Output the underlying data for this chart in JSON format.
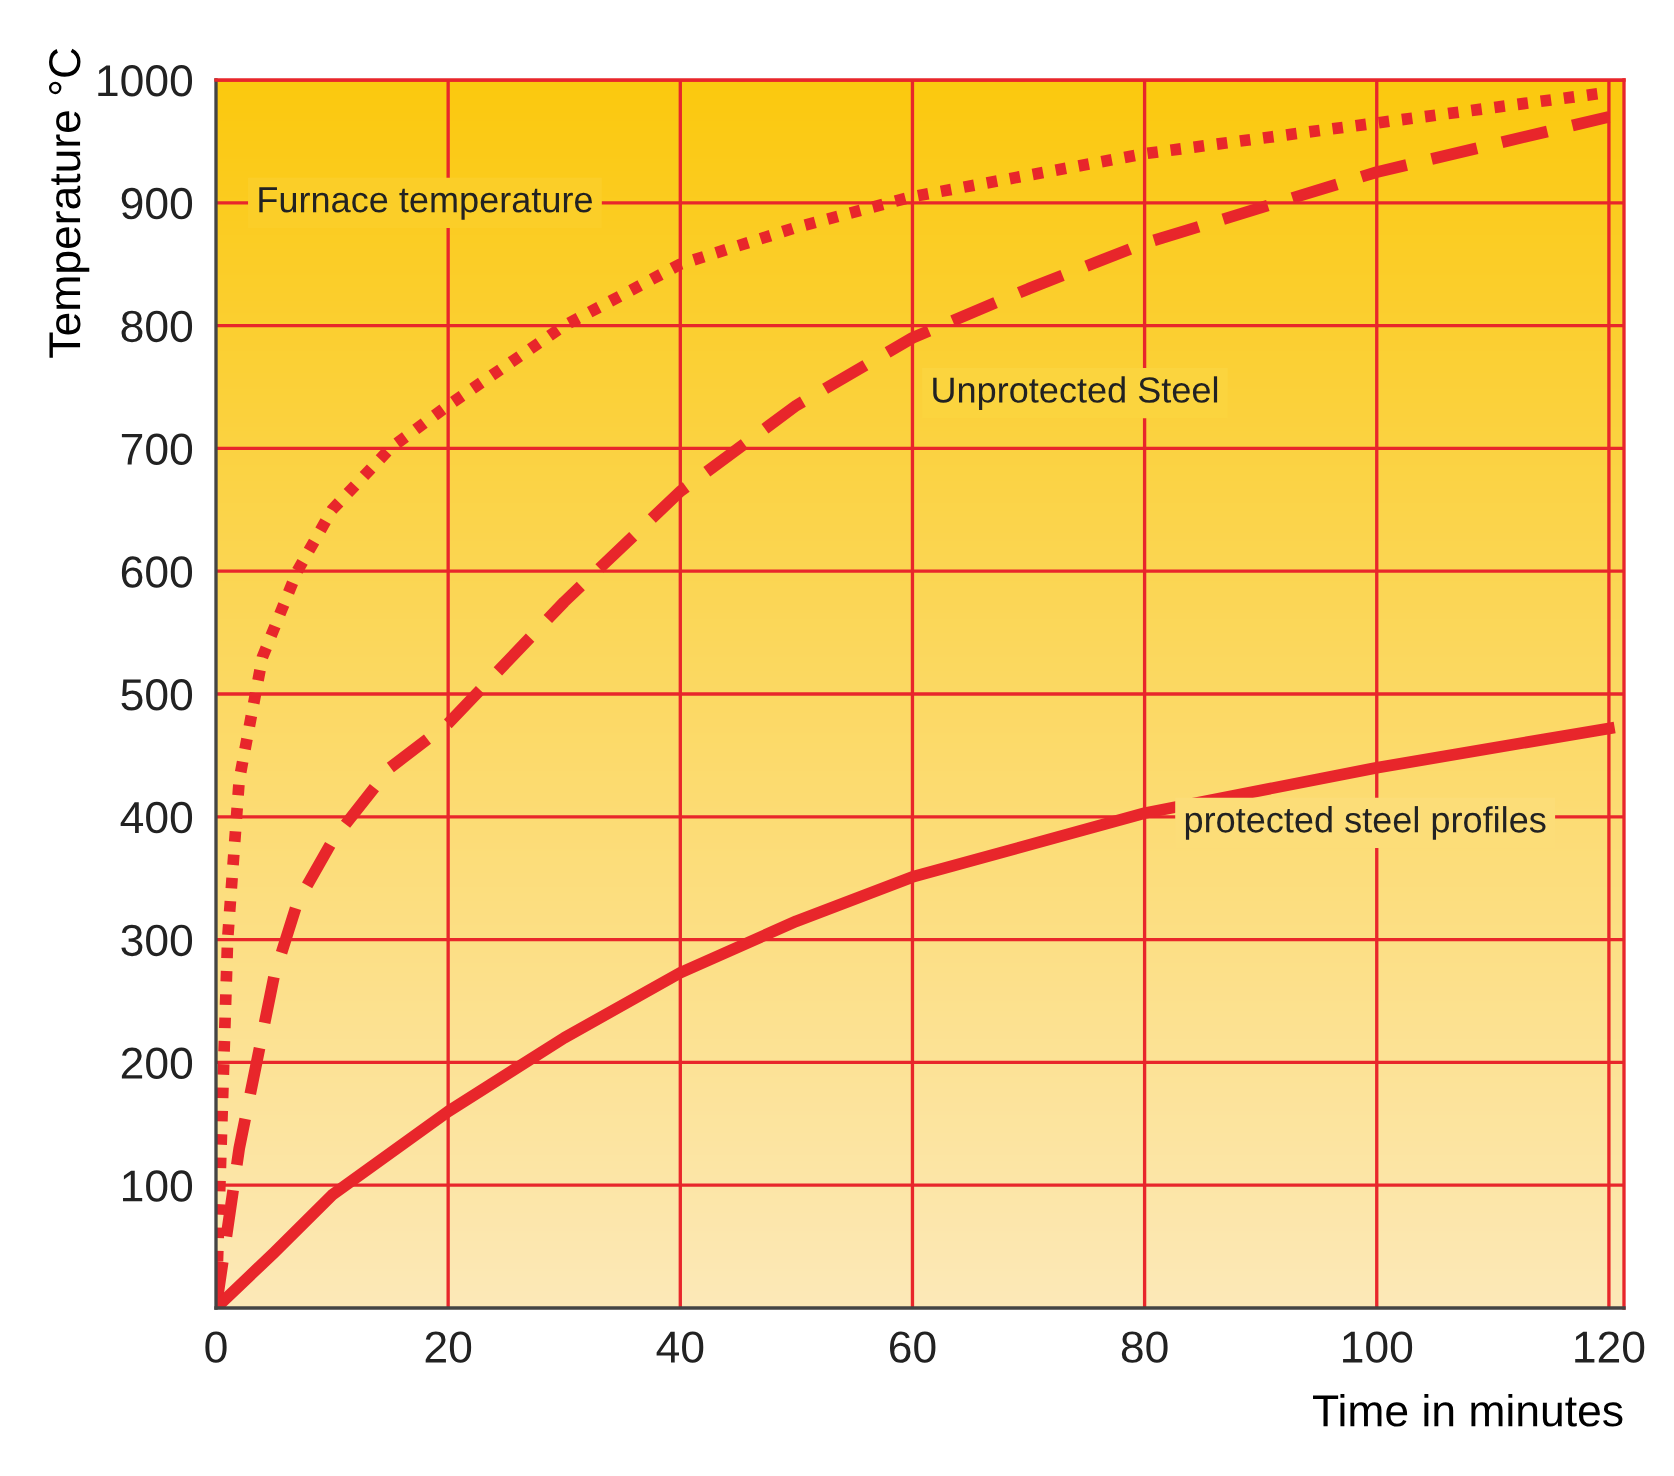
{
  "chart_data": {
    "type": "line",
    "ylabel": "Temperature °C",
    "xlabel": "Time in minutes",
    "xlim": [
      0,
      121.3
    ],
    "ylim": [
      0,
      1000
    ],
    "xticks": [
      0,
      20,
      40,
      60,
      80,
      100,
      120
    ],
    "yticks": [
      100,
      200,
      300,
      400,
      500,
      600,
      700,
      800,
      900,
      1000
    ],
    "grid": true,
    "legend": false,
    "series": [
      {
        "name": "Furnace temperature",
        "color": "#e8262b",
        "line_style": "dotted",
        "x": [
          0,
          1,
          2,
          4,
          7,
          10,
          15,
          20,
          30,
          40,
          50,
          60,
          80,
          100,
          120
        ],
        "values": [
          0,
          300,
          430,
          530,
          600,
          650,
          700,
          735,
          800,
          850,
          880,
          905,
          940,
          965,
          990
        ]
      },
      {
        "name": "Unprotected Steel",
        "color": "#e8262b",
        "line_style": "dashed",
        "x": [
          0,
          2,
          5,
          7,
          10,
          15,
          20,
          30,
          40,
          50,
          60,
          70,
          80,
          100,
          120
        ],
        "values": [
          0,
          130,
          270,
          330,
          380,
          440,
          476,
          575,
          665,
          735,
          790,
          830,
          867,
          925,
          970
        ]
      },
      {
        "name": "protected steel profiles",
        "color": "#e8262b",
        "line_style": "solid",
        "x": [
          0,
          5,
          10,
          20,
          30,
          40,
          50,
          60,
          80,
          100,
          120
        ],
        "values": [
          0,
          45,
          92,
          160,
          220,
          273,
          315,
          351,
          403,
          440,
          472
        ]
      }
    ]
  }
}
